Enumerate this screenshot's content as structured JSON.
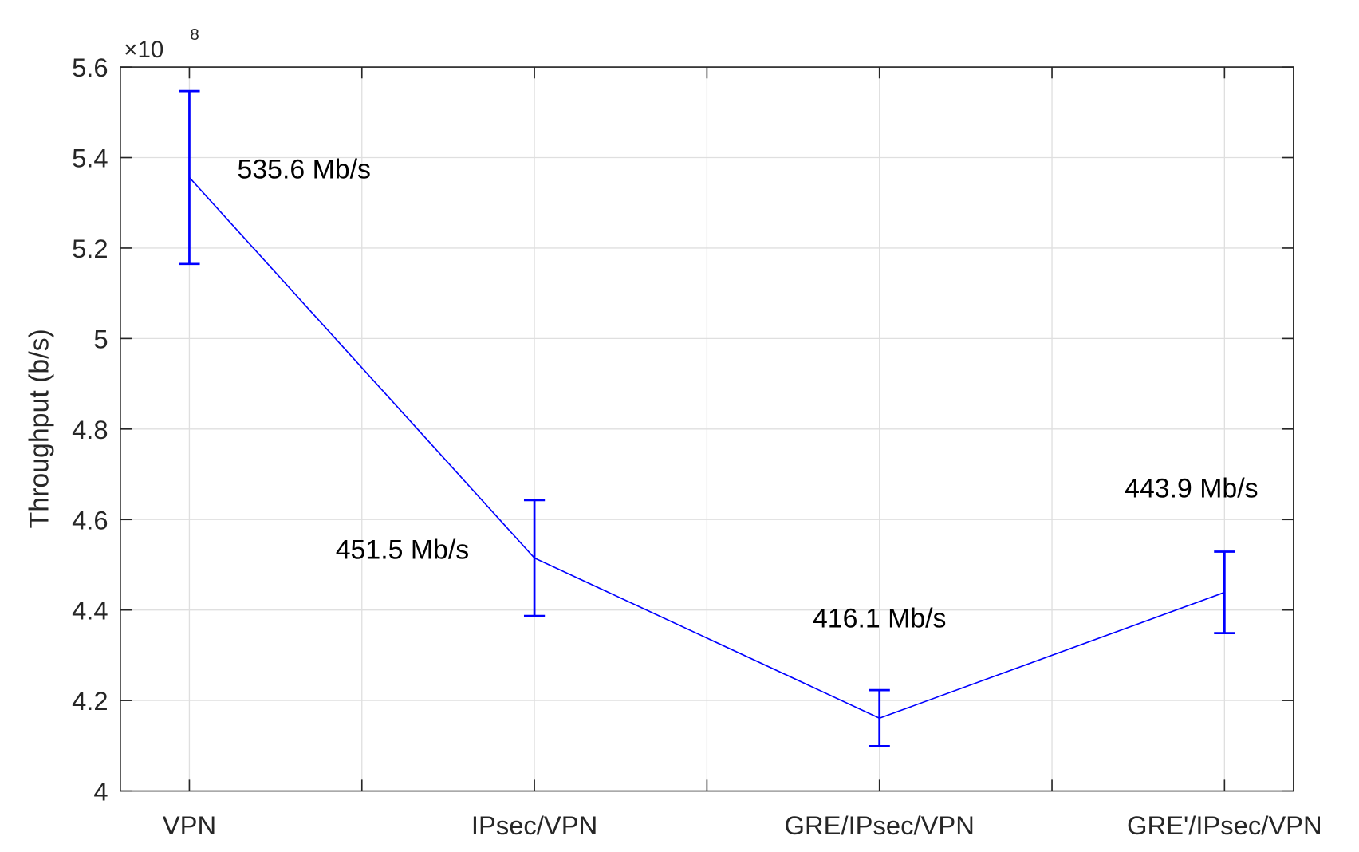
{
  "chart_data": {
    "type": "line",
    "ylabel": "Throughput (b/s)",
    "y_scale_base": "×10",
    "y_scale_exponent": "8",
    "x": [
      1,
      3,
      5,
      7
    ],
    "series": [
      {
        "color": "#0000ff",
        "values": [
          5.356,
          4.515,
          4.161,
          4.439
        ],
        "errors": [
          0.191,
          0.128,
          0.062,
          0.09
        ],
        "value_labels": [
          "535.6 Mb/s",
          "451.5 Mb/s",
          "416.1 Mb/s",
          "443.9 Mb/s"
        ]
      }
    ],
    "xlim": [
      0.6,
      7.4
    ],
    "xticks": [
      {
        "value": 1,
        "label": "VPN"
      },
      {
        "value": 2,
        "label": null
      },
      {
        "value": 3,
        "label": "IPsec/VPN"
      },
      {
        "value": 4,
        "label": null
      },
      {
        "value": 5,
        "label": "GRE/IPsec/VPN"
      },
      {
        "value": 6,
        "label": null
      },
      {
        "value": 7,
        "label": "GRE'/IPsec/VPN"
      }
    ],
    "ylim": [
      4,
      5.6
    ],
    "yticks": [
      4,
      4.2,
      4.4,
      4.6,
      4.8,
      5,
      5.2,
      5.4,
      5.6
    ],
    "grid": true
  }
}
